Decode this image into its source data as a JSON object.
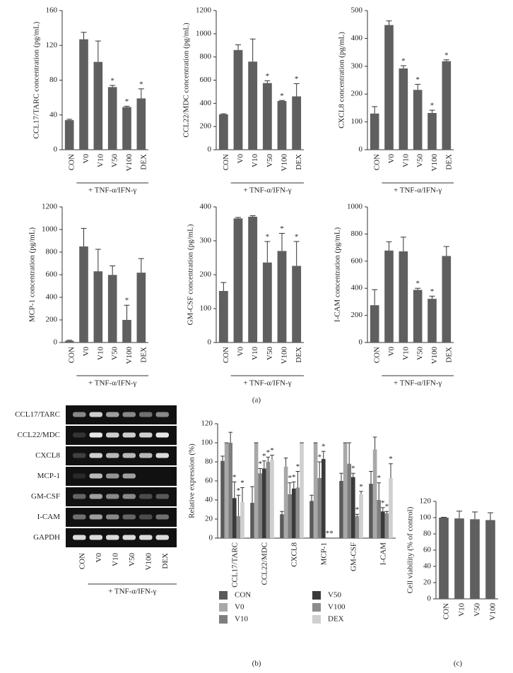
{
  "chart_data": [
    {
      "type": "bar",
      "ylabel": "CCL17/TARC concentration (pg/mL)",
      "categories": [
        "CON",
        "V0",
        "V10",
        "V50",
        "V100",
        "DEX"
      ],
      "values": [
        34,
        127,
        101,
        72,
        49,
        59
      ],
      "errors": [
        1,
        8,
        24,
        2,
        1,
        11
      ],
      "significance": [
        null,
        null,
        null,
        "*",
        "*",
        "*"
      ],
      "color": "#5f5f5f",
      "ylim": [
        0,
        160
      ],
      "yticks": [
        0,
        40,
        80,
        120,
        160
      ],
      "group_label": "+ TNF-α/IFN-γ"
    },
    {
      "type": "bar",
      "ylabel": "CCL22/MDC concentration (pg/mL)",
      "categories": [
        "CON",
        "V0",
        "V10",
        "V50",
        "V100",
        "DEX"
      ],
      "values": [
        305,
        860,
        760,
        575,
        420,
        460
      ],
      "errors": [
        5,
        45,
        195,
        20,
        5,
        110
      ],
      "significance": [
        null,
        null,
        null,
        "*",
        "*",
        "*"
      ],
      "color": "#5f5f5f",
      "ylim": [
        0,
        1200
      ],
      "yticks": [
        0,
        200,
        400,
        600,
        800,
        1000,
        1200
      ],
      "group_label": "+ TNF-α/IFN-γ"
    },
    {
      "type": "bar",
      "ylabel": "CXCL8 concentration (pg/mL)",
      "categories": [
        "CON",
        "V0",
        "V10",
        "V50",
        "V100",
        "DEX"
      ],
      "values": [
        130,
        448,
        292,
        215,
        132,
        318
      ],
      "errors": [
        25,
        15,
        10,
        20,
        10,
        5
      ],
      "significance": [
        null,
        null,
        "*",
        "*",
        "*",
        "*"
      ],
      "color": "#5f5f5f",
      "ylim": [
        0,
        500
      ],
      "yticks": [
        0,
        100,
        200,
        300,
        400,
        500
      ],
      "group_label": "+ TNF-α/IFN-γ"
    },
    {
      "type": "bar",
      "ylabel": "MCP-1 concentration (pg/mL)",
      "categories": [
        "CON",
        "V0",
        "V10",
        "V50",
        "V100",
        "DEX"
      ],
      "values": [
        15,
        850,
        630,
        598,
        200,
        618
      ],
      "errors": [
        5,
        160,
        195,
        80,
        130,
        125
      ],
      "significance": [
        null,
        null,
        null,
        null,
        "*",
        null
      ],
      "color": "#5f5f5f",
      "ylim": [
        0,
        1200
      ],
      "yticks": [
        0,
        200,
        400,
        600,
        800,
        1000,
        1200
      ],
      "group_label": "+ TNF-α/IFN-γ"
    },
    {
      "type": "bar",
      "ylabel": "GM-CSF concentration (pg/mL)",
      "categories": [
        "CON",
        "V0",
        "V10",
        "V50",
        "V100",
        "DEX"
      ],
      "values": [
        152,
        366,
        371,
        236,
        270,
        226
      ],
      "errors": [
        25,
        3,
        3,
        62,
        52,
        72
      ],
      "significance": [
        null,
        null,
        null,
        "*",
        "*",
        "*"
      ],
      "color": "#5f5f5f",
      "ylim": [
        0,
        400
      ],
      "yticks": [
        0,
        100,
        200,
        300,
        400
      ],
      "group_label": "+ TNF-α/IFN-γ"
    },
    {
      "type": "bar",
      "ylabel": "I-CAM concentration (pg/mL)",
      "categories": [
        "CON",
        "V0",
        "V10",
        "V50",
        "V100",
        "DEX"
      ],
      "values": [
        275,
        678,
        672,
        388,
        322,
        638
      ],
      "errors": [
        115,
        65,
        105,
        12,
        20,
        70
      ],
      "significance": [
        null,
        null,
        null,
        "*",
        "*",
        null
      ],
      "color": "#5f5f5f",
      "ylim": [
        0,
        1000
      ],
      "yticks": [
        0,
        200,
        400,
        600,
        800,
        1000
      ],
      "group_label": "+ TNF-α/IFN-γ"
    },
    {
      "type": "bar",
      "ylabel": "Relative expression (%)",
      "categories": [
        "CCL17/TARC",
        "CCL22/MDC",
        "CXCL8",
        "MCP-1",
        "GM-CSF",
        "I-CAM"
      ],
      "ylim": [
        0,
        120
      ],
      "yticks": [
        0,
        20,
        40,
        60,
        80,
        100,
        120
      ],
      "series": [
        {
          "name": "CON",
          "color": "#5a5a5a",
          "values": [
            81,
            37,
            25,
            39,
            60,
            57
          ],
          "errors": [
            5,
            17,
            3,
            6,
            8,
            13
          ],
          "significance": [
            null,
            null,
            null,
            null,
            null,
            null
          ]
        },
        {
          "name": "V0",
          "color": "#a8a8a8",
          "values": [
            100,
            100,
            75,
            100,
            100,
            93
          ],
          "errors": [
            0,
            0,
            9,
            0,
            0,
            13
          ],
          "significance": [
            null,
            null,
            null,
            null,
            null,
            null
          ]
        },
        {
          "name": "V10",
          "color": "#7e7e7e",
          "values": [
            100,
            68,
            46,
            63,
            78,
            40
          ],
          "errors": [
            11,
            5,
            12,
            17,
            22,
            18
          ],
          "significance": [
            null,
            "*",
            "*",
            "*",
            null,
            "*"
          ]
        },
        {
          "name": "V50",
          "color": "#3a3a3a",
          "values": [
            42,
            73,
            52,
            83,
            64,
            28
          ],
          "errors": [
            17,
            8,
            7,
            8,
            4,
            4
          ],
          "significance": [
            "*",
            "*",
            "*",
            "*",
            "*",
            "*"
          ]
        },
        {
          "name": "V100",
          "color": "#8c8c8c",
          "values": [
            23,
            80,
            53,
            0,
            23,
            26
          ],
          "errors": [
            22,
            5,
            17,
            0,
            2,
            2
          ],
          "significance": [
            "*",
            "*",
            "*",
            "*",
            "*",
            "*"
          ]
        },
        {
          "name": "DEX",
          "color": "#cfcfcf",
          "values": [
            38,
            82,
            100,
            0,
            46,
            63
          ],
          "errors": [
            15,
            5,
            0,
            0,
            3,
            15
          ],
          "significance": [
            "*",
            "*",
            null,
            "*",
            "*",
            "*"
          ]
        }
      ]
    },
    {
      "type": "bar",
      "ylabel": "Cell viability (% of control)",
      "categories": [
        "CON",
        "V10",
        "V50",
        "V100"
      ],
      "values": [
        100,
        99,
        98,
        97
      ],
      "errors": [
        0.5,
        9,
        9,
        9
      ],
      "significance": [
        null,
        null,
        null,
        null
      ],
      "color": "#5f5f5f",
      "ylim": [
        0,
        120
      ],
      "yticks": [
        0,
        20,
        40,
        60,
        80,
        100,
        120
      ]
    }
  ],
  "gel": {
    "rows": [
      "CCL17/TARC",
      "CCL22/MDC",
      "CXCL8",
      "MCP-1",
      "GM-CSF",
      "I-CAM",
      "GAPDH"
    ],
    "lanes": [
      "CON",
      "V0",
      "V10",
      "V50",
      "V100",
      "DEX"
    ],
    "group_label": "+ TNF-α/IFN-γ"
  },
  "panel_labels": [
    "(a)",
    "(b)",
    "(c)"
  ]
}
